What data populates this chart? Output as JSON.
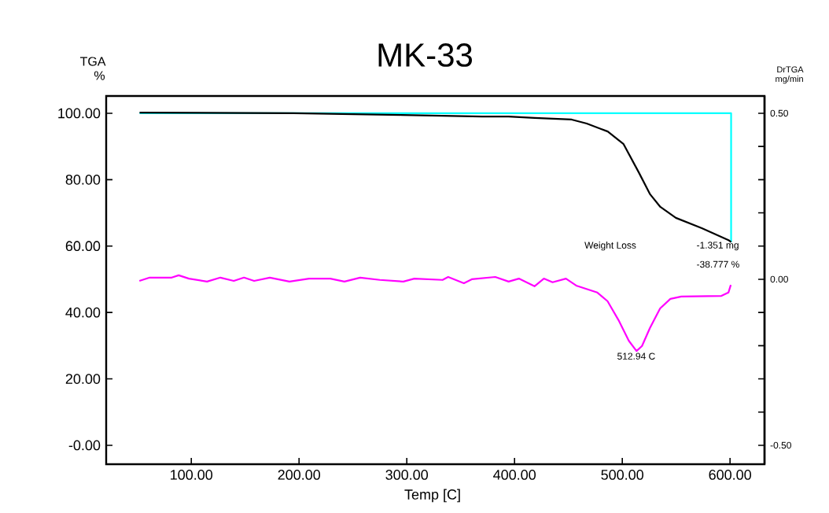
{
  "chart_data": {
    "type": "line",
    "title": "MK-33",
    "xlabel": "Temp [C]",
    "ylabel": "TGA %",
    "y2label": "DrTGA mg/min",
    "xlim": [
      21,
      632
    ],
    "ylim": [
      -5.7,
      105.2
    ],
    "y2lim": [
      -0.557,
      0.552
    ],
    "xticks": [
      {
        "value": 100,
        "label": "100.00"
      },
      {
        "value": 200,
        "label": "200.00"
      },
      {
        "value": 300,
        "label": "300.00"
      },
      {
        "value": 400,
        "label": "400.00"
      },
      {
        "value": 500,
        "label": "500.00"
      },
      {
        "value": 600,
        "label": "600.00"
      }
    ],
    "yticks": [
      {
        "value": 0,
        "label": "-0.00"
      },
      {
        "value": 20,
        "label": "20.00"
      },
      {
        "value": 40,
        "label": "40.00"
      },
      {
        "value": 60,
        "label": "60.00"
      },
      {
        "value": 80,
        "label": "80.00"
      },
      {
        "value": 100,
        "label": "100.00"
      }
    ],
    "y2ticks": [
      {
        "value": -0.5,
        "label": "-0.50"
      },
      {
        "value": -0.4,
        "label": null
      },
      {
        "value": -0.3,
        "label": null
      },
      {
        "value": -0.2,
        "label": null
      },
      {
        "value": -0.1,
        "label": null
      },
      {
        "value": 0,
        "label": "0.00"
      },
      {
        "value": 0.1,
        "label": null
      },
      {
        "value": 0.2,
        "label": null
      },
      {
        "value": 0.3,
        "label": null
      },
      {
        "value": 0.4,
        "label": null
      },
      {
        "value": 0.5,
        "label": "0.50"
      }
    ],
    "grid": false,
    "marker": "none",
    "line_style": "solid",
    "series": [
      {
        "color": "#00ffff",
        "x": [
          52,
          601,
          601
        ],
        "values": [
          100,
          100,
          61.2
        ]
      },
      {
        "color": "#000000",
        "x": [
          52,
          195,
          295,
          370,
          394.5,
          418.6,
          453,
          467,
          486.5,
          496.6,
          501,
          515.6,
          525.8,
          535.3,
          549.7,
          573.8,
          598.6,
          601
        ],
        "values": [
          100.2,
          100,
          99.5,
          99,
          99,
          98.6,
          98.1,
          96.9,
          94.5,
          91.9,
          90.8,
          82,
          75.6,
          71.8,
          68.5,
          65.4,
          61.8,
          61.2
        ]
      },
      {
        "color": "#ff00ff",
        "axis": "y2",
        "x": [
          51.8,
          61.4,
          81.8,
          88.3,
          97.8,
          114.6,
          127,
          139.4,
          148.9,
          158.3,
          172.9,
          191.1,
          209.3,
          229,
          242.1,
          256.7,
          275,
          296.8,
          307,
          333.2,
          338.4,
          353,
          360.3,
          382.1,
          394.5,
          404,
          418.5,
          427.2,
          435.3,
          447.7,
          457.2,
          476.8,
          486.3,
          496.5,
          506,
          513.2,
          518.3,
          525.6,
          535.1,
          544.6,
          554.8,
          592,
          598.5,
          600.7
        ],
        "values": [
          -0.005,
          0.005,
          0.005,
          0.012,
          0.002,
          -0.007,
          0.005,
          -0.005,
          0.005,
          -0.005,
          0.005,
          -0.007,
          0.002,
          0.002,
          -0.007,
          0.005,
          -0.002,
          -0.007,
          0.002,
          -0.002,
          0.007,
          -0.012,
          0,
          0.007,
          -0.007,
          0.002,
          -0.021,
          0.002,
          -0.009,
          0.002,
          -0.019,
          -0.04,
          -0.066,
          -0.123,
          -0.185,
          -0.216,
          -0.201,
          -0.147,
          -0.088,
          -0.059,
          -0.052,
          -0.05,
          -0.04,
          -0.017
        ]
      }
    ],
    "annotations": [
      "Weight Loss",
      "-1.351 mg",
      "-38.777 %",
      {
        "text": "512.94 C",
        "x": 512.94,
        "y": 28.4
      }
    ]
  }
}
